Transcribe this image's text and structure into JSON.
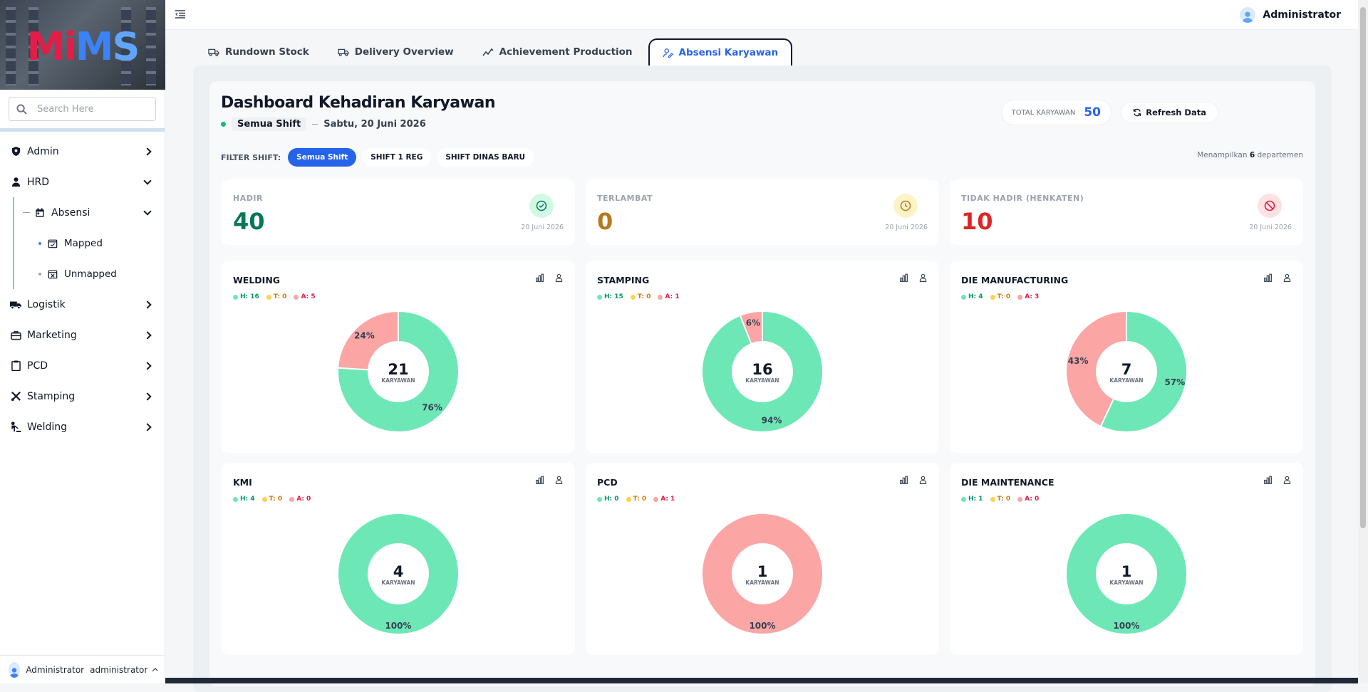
{
  "app": {
    "logo": "MIMS"
  },
  "search": {
    "placeholder": "Search Here"
  },
  "sidebar": {
    "items": [
      {
        "label": "Admin",
        "icon": "admin-shield-icon"
      },
      {
        "label": "HRD",
        "icon": "person-icon",
        "expanded": true,
        "children": [
          {
            "label": "Absensi",
            "icon": "calendar-icon",
            "expanded": true,
            "children": [
              {
                "label": "Mapped",
                "icon": "calendar-check-icon"
              },
              {
                "label": "Unmapped",
                "icon": "calendar-x-icon"
              }
            ]
          }
        ]
      },
      {
        "label": "Logistik",
        "icon": "truck-icon"
      },
      {
        "label": "Marketing",
        "icon": "briefcase-icon"
      },
      {
        "label": "PCD",
        "icon": "clipboard-icon"
      },
      {
        "label": "Stamping",
        "icon": "tools-icon"
      },
      {
        "label": "Welding",
        "icon": "welder-icon"
      }
    ],
    "footer": {
      "name": "Administrator",
      "role": "administrator"
    }
  },
  "topbar": {
    "user": "Administrator"
  },
  "tabs": [
    {
      "label": "Rundown Stock"
    },
    {
      "label": "Delivery Overview"
    },
    {
      "label": "Achievement Production"
    },
    {
      "label": "Absensi Karyawan",
      "active": true
    }
  ],
  "dashboard": {
    "title": "Dashboard Kehadiran Karyawan",
    "shift": "Semua Shift",
    "date": "Sabtu, 20 Juni 2026",
    "total_label": "TOTAL KARYAWAN",
    "total_value": "50",
    "refresh_label": "Refresh Data",
    "filter_label": "FILTER SHIFT:",
    "filters": [
      "Semua Shift",
      "SHIFT 1 REG",
      "SHIFT DINAS BARU"
    ],
    "showing_pre": "Menampilkan",
    "showing_num": "6",
    "showing_post": "departemen"
  },
  "stats": [
    {
      "label": "HADIR",
      "value": "40",
      "date": "20 Juni 2026",
      "color": "#047857",
      "bg": "#d1fae5",
      "icon": "check-circle-icon"
    },
    {
      "label": "TERLAMBAT",
      "value": "0",
      "date": "20 Juni 2026",
      "color": "#b7791f",
      "bg": "#fef3c7",
      "icon": "clock-icon"
    },
    {
      "label": "TIDAK HADIR (HENKATEN)",
      "value": "10",
      "date": "20 Juni 2026",
      "color": "#dc2626",
      "bg": "#fee2e2",
      "icon": "ban-icon"
    }
  ],
  "colors": {
    "hadir": "#6ee7b7",
    "absent": "#fca5a5",
    "late": "#fcd34d"
  },
  "chart_data": [
    {
      "type": "pie",
      "title": "WELDING",
      "legend": {
        "h": "H: 16",
        "t": "T: 0",
        "a": "A: 5"
      },
      "center": "21",
      "center_label": "KARYAWAN",
      "slices": [
        {
          "name": "H",
          "value": 76,
          "label": "76%"
        },
        {
          "name": "A",
          "value": 24,
          "label": "24%"
        }
      ]
    },
    {
      "type": "pie",
      "title": "STAMPING",
      "legend": {
        "h": "H: 15",
        "t": "T: 0",
        "a": "A: 1"
      },
      "center": "16",
      "center_label": "KARYAWAN",
      "slices": [
        {
          "name": "H",
          "value": 94,
          "label": "94%"
        },
        {
          "name": "A",
          "value": 6,
          "label": "6%"
        }
      ]
    },
    {
      "type": "pie",
      "title": "DIE MANUFACTURING",
      "legend": {
        "h": "H: 4",
        "t": "T: 0",
        "a": "A: 3"
      },
      "center": "7",
      "center_label": "KARYAWAN",
      "slices": [
        {
          "name": "H",
          "value": 57,
          "label": "57%"
        },
        {
          "name": "A",
          "value": 43,
          "label": "43%"
        }
      ]
    },
    {
      "type": "pie",
      "title": "KMI",
      "legend": {
        "h": "H: 4",
        "t": "T: 0",
        "a": "A: 0"
      },
      "center": "4",
      "center_label": "KARYAWAN",
      "slices": [
        {
          "name": "H",
          "value": 100,
          "label": "100%"
        }
      ]
    },
    {
      "type": "pie",
      "title": "PCD",
      "legend": {
        "h": "H: 0",
        "t": "T: 0",
        "a": "A: 1"
      },
      "center": "1",
      "center_label": "KARYAWAN",
      "slices": [
        {
          "name": "A",
          "value": 100,
          "label": "100%"
        }
      ]
    },
    {
      "type": "pie",
      "title": "DIE MAINTENANCE",
      "legend": {
        "h": "H: 1",
        "t": "T: 0",
        "a": "A: 0"
      },
      "center": "1",
      "center_label": "KARYAWAN",
      "slices": [
        {
          "name": "H",
          "value": 100,
          "label": "100%"
        }
      ]
    }
  ]
}
